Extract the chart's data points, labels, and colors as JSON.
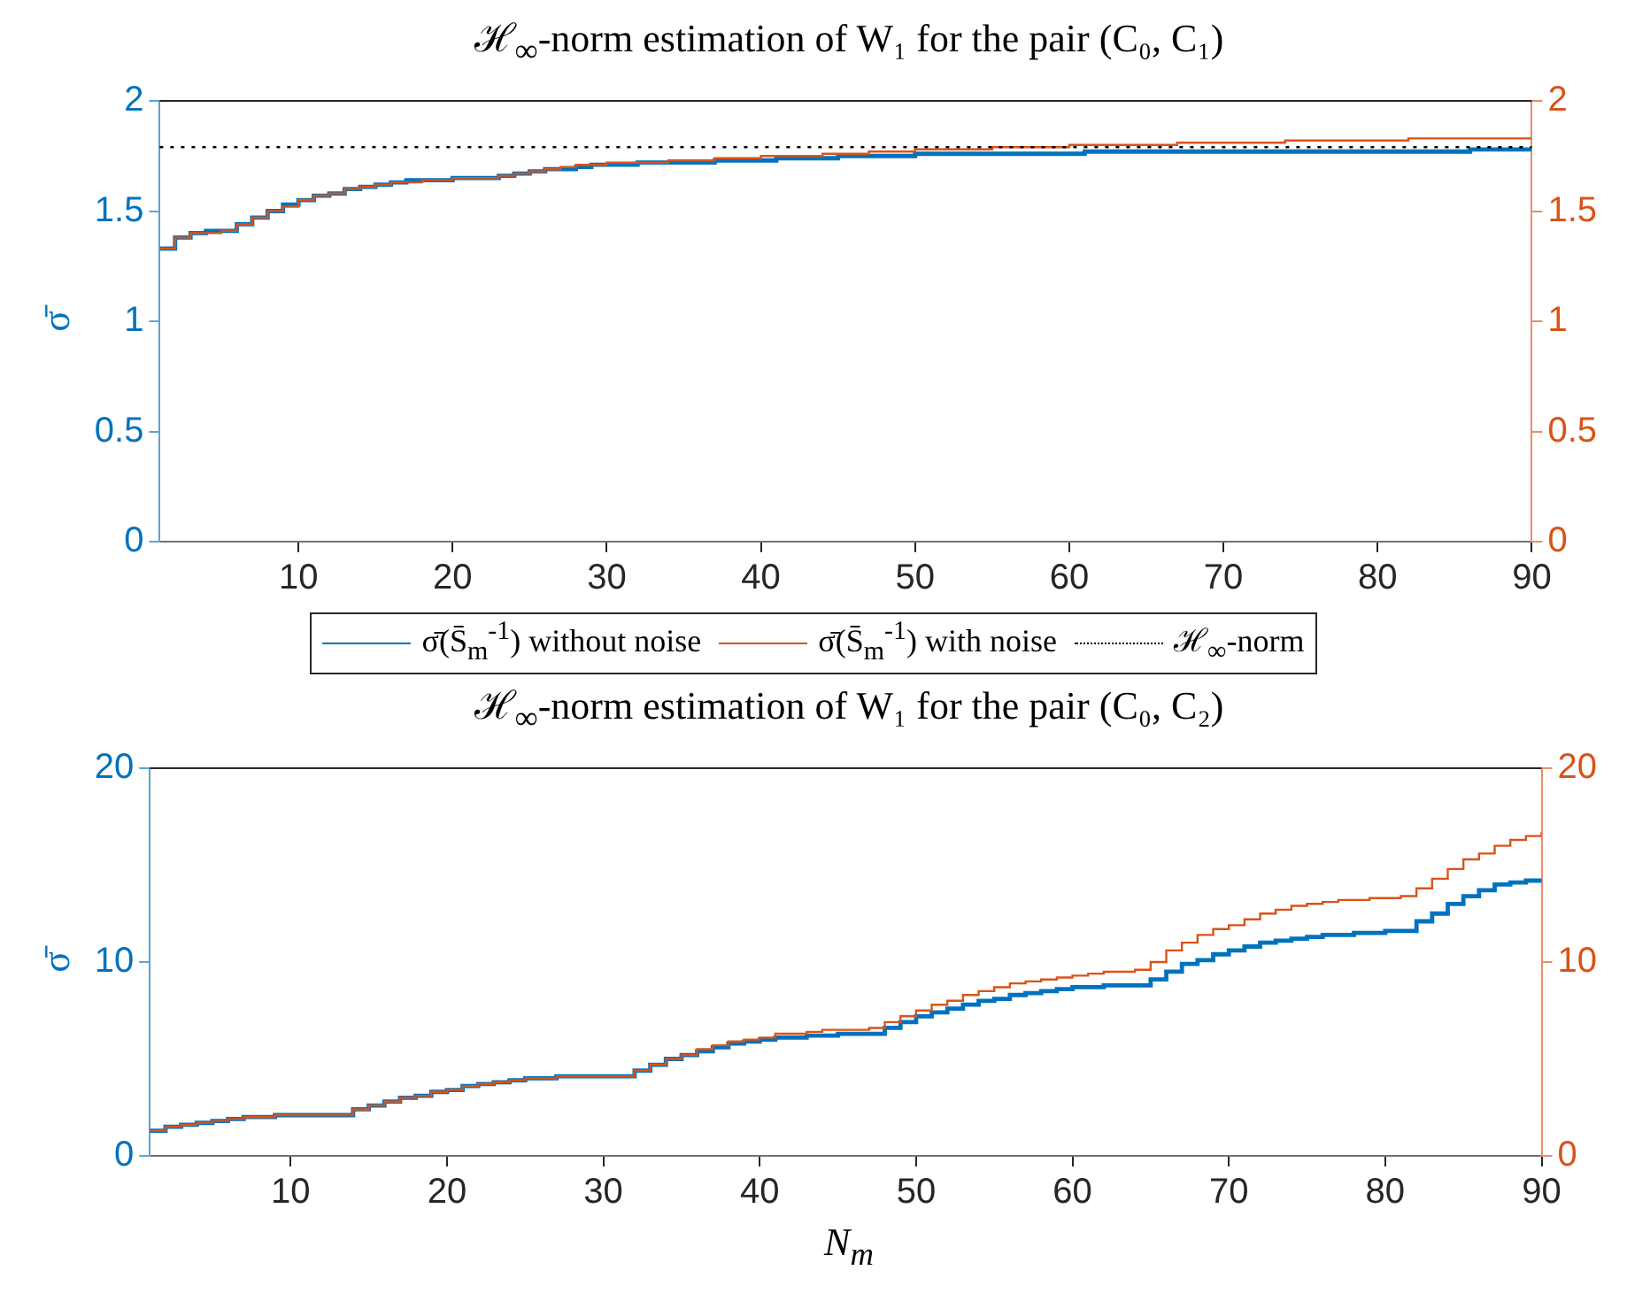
{
  "chart_data": [
    {
      "type": "step",
      "title": "ℋ$_{∞}$-norm estimation of W₁ for the pair (C₀, C₁)",
      "ylabel": "σ̄",
      "legend": "bottom",
      "x": [
        1,
        2,
        3,
        4,
        5,
        6,
        7,
        8,
        9,
        10,
        11,
        12,
        13,
        14,
        15,
        16,
        17,
        18,
        19,
        20,
        21,
        22,
        23,
        24,
        25,
        26,
        27,
        28,
        29,
        30,
        31,
        32,
        33,
        34,
        35,
        36,
        37,
        38,
        39,
        40,
        41,
        42,
        43,
        44,
        45,
        46,
        47,
        48,
        49,
        50,
        51,
        52,
        53,
        54,
        55,
        56,
        57,
        58,
        59,
        60,
        61,
        62,
        63,
        64,
        65,
        66,
        67,
        68,
        69,
        70,
        71,
        72,
        73,
        74,
        75,
        76,
        77,
        78,
        79,
        80,
        81,
        82,
        83,
        84,
        85,
        86,
        87,
        88,
        89,
        90
      ],
      "xlim": [
        1,
        90
      ],
      "xticks": [
        10,
        20,
        30,
        40,
        50,
        60,
        70,
        80,
        90
      ],
      "ylim": [
        0,
        2
      ],
      "yticks": [
        0,
        0.5,
        1,
        1.5,
        2
      ],
      "y2lim": [
        0,
        2
      ],
      "y2ticks": [
        0,
        0.5,
        1,
        1.5,
        2
      ],
      "series": [
        {
          "name": "σ̄(S̄$_{m}$$^{-1}$) without noise",
          "color": "#0072bd",
          "axis": "y",
          "values": [
            1.33,
            1.38,
            1.4,
            1.41,
            1.41,
            1.44,
            1.47,
            1.5,
            1.53,
            1.55,
            1.57,
            1.58,
            1.6,
            1.61,
            1.62,
            1.63,
            1.64,
            1.64,
            1.64,
            1.65,
            1.65,
            1.65,
            1.66,
            1.67,
            1.68,
            1.69,
            1.69,
            1.7,
            1.71,
            1.71,
            1.71,
            1.72,
            1.72,
            1.72,
            1.72,
            1.72,
            1.73,
            1.73,
            1.73,
            1.73,
            1.74,
            1.74,
            1.74,
            1.74,
            1.75,
            1.75,
            1.75,
            1.75,
            1.75,
            1.76,
            1.76,
            1.76,
            1.76,
            1.76,
            1.76,
            1.76,
            1.76,
            1.76,
            1.76,
            1.76,
            1.77,
            1.77,
            1.77,
            1.77,
            1.77,
            1.77,
            1.77,
            1.77,
            1.77,
            1.77,
            1.77,
            1.77,
            1.77,
            1.77,
            1.77,
            1.77,
            1.77,
            1.77,
            1.77,
            1.77,
            1.77,
            1.77,
            1.77,
            1.77,
            1.77,
            1.78,
            1.78,
            1.78,
            1.78,
            1.78
          ]
        },
        {
          "name": "σ̄(S̄$_{m}$$^{-1}$) with noise",
          "color": "#d95319",
          "axis": "y2",
          "values": [
            1.33,
            1.38,
            1.4,
            1.4,
            1.41,
            1.44,
            1.47,
            1.5,
            1.52,
            1.55,
            1.57,
            1.58,
            1.6,
            1.61,
            1.62,
            1.63,
            1.63,
            1.64,
            1.64,
            1.65,
            1.65,
            1.65,
            1.66,
            1.67,
            1.68,
            1.69,
            1.7,
            1.71,
            1.71,
            1.72,
            1.72,
            1.72,
            1.72,
            1.73,
            1.73,
            1.73,
            1.74,
            1.74,
            1.74,
            1.75,
            1.75,
            1.75,
            1.75,
            1.76,
            1.76,
            1.76,
            1.77,
            1.77,
            1.77,
            1.78,
            1.78,
            1.78,
            1.78,
            1.78,
            1.79,
            1.79,
            1.79,
            1.79,
            1.79,
            1.8,
            1.8,
            1.8,
            1.8,
            1.8,
            1.8,
            1.8,
            1.81,
            1.81,
            1.81,
            1.81,
            1.81,
            1.81,
            1.81,
            1.82,
            1.82,
            1.82,
            1.82,
            1.82,
            1.82,
            1.82,
            1.82,
            1.83,
            1.83,
            1.83,
            1.83,
            1.83,
            1.83,
            1.83,
            1.83,
            1.83
          ]
        }
      ],
      "ref_lines": [
        {
          "axis": "y",
          "value": 1.79,
          "label": "ℋ$_{∞}$-norm",
          "color": "#000000",
          "line_style": "dotted"
        }
      ]
    },
    {
      "type": "step",
      "title": "ℋ$_{∞}$-norm estimation of W₁ for the pair (C₀, C₂)",
      "ylabel": "σ̄",
      "xlabel": "N$_{m}$",
      "x": [
        1,
        2,
        3,
        4,
        5,
        6,
        7,
        8,
        9,
        10,
        11,
        12,
        13,
        14,
        15,
        16,
        17,
        18,
        19,
        20,
        21,
        22,
        23,
        24,
        25,
        26,
        27,
        28,
        29,
        30,
        31,
        32,
        33,
        34,
        35,
        36,
        37,
        38,
        39,
        40,
        41,
        42,
        43,
        44,
        45,
        46,
        47,
        48,
        49,
        50,
        51,
        52,
        53,
        54,
        55,
        56,
        57,
        58,
        59,
        60,
        61,
        62,
        63,
        64,
        65,
        66,
        67,
        68,
        69,
        70,
        71,
        72,
        73,
        74,
        75,
        76,
        77,
        78,
        79,
        80,
        81,
        82,
        83,
        84,
        85,
        86,
        87,
        88,
        89,
        90
      ],
      "xlim": [
        1,
        90
      ],
      "xticks": [
        10,
        20,
        30,
        40,
        50,
        60,
        70,
        80,
        90
      ],
      "ylim": [
        0,
        20
      ],
      "yticks": [
        0,
        10,
        20
      ],
      "y2lim": [
        0,
        20
      ],
      "y2ticks": [
        0,
        10,
        20
      ],
      "series": [
        {
          "color": "#0072bd",
          "axis": "y",
          "values": [
            1.3,
            1.5,
            1.6,
            1.7,
            1.8,
            1.9,
            2.0,
            2.0,
            2.1,
            2.1,
            2.1,
            2.1,
            2.1,
            2.4,
            2.6,
            2.8,
            3.0,
            3.1,
            3.3,
            3.4,
            3.6,
            3.7,
            3.8,
            3.9,
            4.0,
            4.0,
            4.1,
            4.1,
            4.1,
            4.1,
            4.1,
            4.4,
            4.7,
            5.0,
            5.2,
            5.4,
            5.6,
            5.8,
            5.9,
            6.0,
            6.1,
            6.1,
            6.2,
            6.2,
            6.3,
            6.3,
            6.3,
            6.6,
            6.9,
            7.2,
            7.4,
            7.6,
            7.8,
            8.0,
            8.1,
            8.3,
            8.4,
            8.5,
            8.6,
            8.7,
            8.7,
            8.8,
            8.8,
            8.8,
            9.1,
            9.5,
            9.9,
            10.1,
            10.4,
            10.6,
            10.8,
            11.0,
            11.1,
            11.2,
            11.3,
            11.4,
            11.4,
            11.5,
            11.5,
            11.6,
            11.6,
            12.1,
            12.5,
            13.0,
            13.4,
            13.7,
            14.0,
            14.1,
            14.2,
            14.3
          ]
        },
        {
          "color": "#d95319",
          "axis": "y2",
          "values": [
            1.3,
            1.5,
            1.6,
            1.7,
            1.8,
            1.9,
            2.0,
            2.0,
            2.1,
            2.1,
            2.1,
            2.1,
            2.1,
            2.4,
            2.6,
            2.8,
            3.0,
            3.1,
            3.3,
            3.4,
            3.6,
            3.7,
            3.8,
            3.9,
            4.0,
            4.0,
            4.1,
            4.1,
            4.1,
            4.1,
            4.1,
            4.4,
            4.7,
            5.0,
            5.2,
            5.5,
            5.7,
            5.9,
            6.0,
            6.1,
            6.3,
            6.3,
            6.4,
            6.5,
            6.5,
            6.5,
            6.6,
            6.9,
            7.2,
            7.5,
            7.8,
            8.0,
            8.3,
            8.5,
            8.7,
            8.9,
            9.0,
            9.1,
            9.2,
            9.3,
            9.4,
            9.5,
            9.5,
            9.6,
            10.0,
            10.6,
            11.0,
            11.4,
            11.7,
            11.9,
            12.2,
            12.5,
            12.7,
            12.9,
            13.0,
            13.1,
            13.2,
            13.2,
            13.3,
            13.3,
            13.4,
            13.8,
            14.3,
            14.8,
            15.3,
            15.6,
            16.0,
            16.3,
            16.5,
            16.7
          ]
        }
      ]
    }
  ]
}
